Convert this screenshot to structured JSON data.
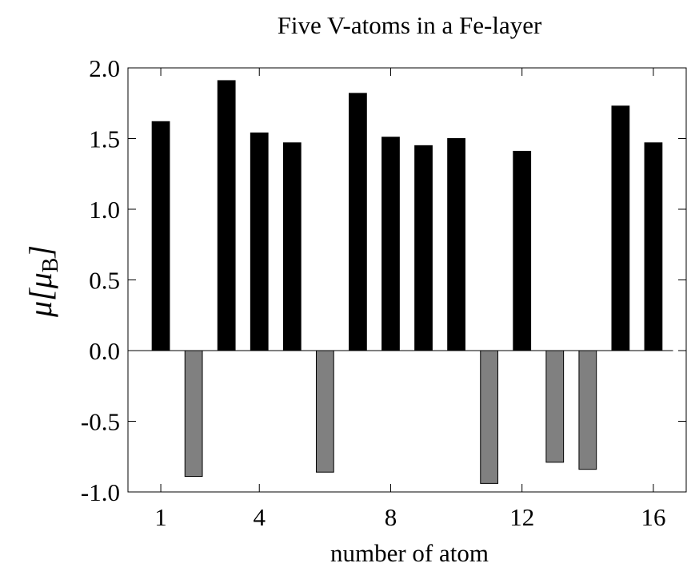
{
  "chart_data": {
    "type": "bar",
    "title": "Five V-atoms in a Fe-layer",
    "xlabel": "number of atom",
    "ylabel": [
      "μ[μ",
      "B",
      "]"
    ],
    "x": [
      1,
      2,
      3,
      4,
      5,
      6,
      7,
      8,
      9,
      10,
      11,
      12,
      13,
      14,
      15,
      16
    ],
    "values": [
      1.62,
      -0.89,
      1.91,
      1.54,
      1.47,
      -0.86,
      1.82,
      1.51,
      1.45,
      1.5,
      -0.94,
      1.41,
      -0.79,
      -0.84,
      1.73,
      1.47
    ],
    "color": "#000000",
    "negative_color": "#808080",
    "xlim": [
      0,
      17
    ],
    "xticks": [
      1,
      4,
      8,
      12,
      16
    ],
    "ylim": [
      -1.0,
      2.0
    ],
    "yticks": [
      {
        "value": -1.0,
        "label": "-1.0"
      },
      {
        "value": -0.5,
        "label": "-0.5"
      },
      {
        "value": 0,
        "label": "0.0"
      },
      {
        "value": 0.5,
        "label": "0.5"
      },
      {
        "value": 1.0,
        "label": "1.0"
      },
      {
        "value": 1.5,
        "label": "1.5"
      },
      {
        "value": 2.0,
        "label": "2.0"
      }
    ]
  }
}
